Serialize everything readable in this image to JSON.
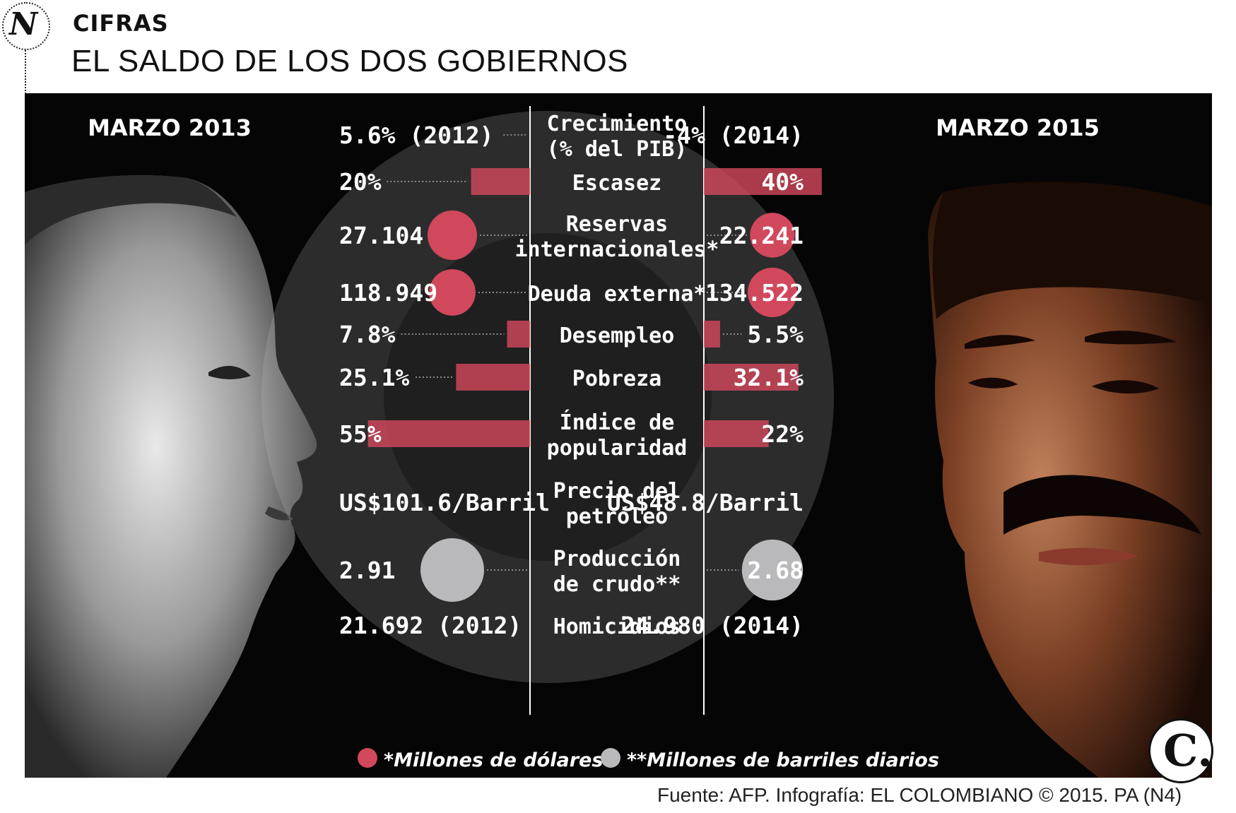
{
  "header": {
    "kicker": "CIFRAS",
    "title": "EL SALDO DE LOS DOS GOBIERNOS",
    "logo_letter": "N"
  },
  "left_label": "MARZO 2013",
  "right_label": "MARZO 2015",
  "footer": {
    "source": "Fuente: AFP. Infografía: EL COLOMBIANO © 2015. PA (N4)",
    "brand_mark": "C."
  },
  "legend": [
    {
      "marker": "circle",
      "color": "#d1485c",
      "text": "*Millones de dólares"
    },
    {
      "marker": "circle",
      "color": "#b9b9bb",
      "text": "**Millones de barriles diarios"
    }
  ],
  "chart_data": {
    "type": "bar",
    "title": "EL SALDO DE LOS DOS GOBIERNOS",
    "series": [
      {
        "name": "MARZO 2013"
      },
      {
        "name": "MARZO 2015"
      }
    ],
    "rows": [
      {
        "lines": [
          "Crecimiento",
          "(% del PIB)"
        ],
        "kind": "text",
        "left_text": "5.6% (2012)",
        "right_text": "-4% (2014)",
        "left": 5.6,
        "right": -4
      },
      {
        "lines": [
          "Escasez"
        ],
        "kind": "bar",
        "unit": "%",
        "left_text": "20%",
        "right_text": "40%",
        "left": 20,
        "right": 40
      },
      {
        "lines": [
          "Reservas",
          "internacionales*"
        ],
        "kind": "circle",
        "color": "#d1485c",
        "left_text": "27.104",
        "right_text": "22.241",
        "left": 27104,
        "right": 22241
      },
      {
        "lines": [
          "Deuda externa*"
        ],
        "kind": "circle",
        "color": "#d1485c",
        "left_text": "118.949",
        "right_text": "134.522",
        "left": 118949,
        "right": 134522
      },
      {
        "lines": [
          "Desempleo"
        ],
        "kind": "bar",
        "unit": "%",
        "left_text": "7.8%",
        "right_text": "5.5%",
        "left": 7.8,
        "right": 5.5
      },
      {
        "lines": [
          "Pobreza"
        ],
        "kind": "bar",
        "unit": "%",
        "left_text": "25.1%",
        "right_text": "32.1%",
        "left": 25.1,
        "right": 32.1
      },
      {
        "lines": [
          "Índice de",
          "popularidad"
        ],
        "kind": "bar",
        "unit": "%",
        "left_text": "55%",
        "right_text": "22%",
        "left": 55,
        "right": 22
      },
      {
        "lines": [
          "Precio del",
          "petróleo"
        ],
        "kind": "text",
        "left_text": "US$101.6/Barril",
        "right_text": "US$48.8/Barril",
        "left": 101.6,
        "right": 48.8
      },
      {
        "lines": [
          "Producción",
          "de crudo**"
        ],
        "kind": "circle",
        "color": "#b9b9bb",
        "left_text": "2.91",
        "right_text": "2.68",
        "left": 2.91,
        "right": 2.68
      },
      {
        "lines": [
          "Homicidios"
        ],
        "kind": "text",
        "left_text": "21.692 (2012)",
        "right_text": "24.980 (2014)",
        "left": 21692,
        "right": 24980
      }
    ]
  }
}
